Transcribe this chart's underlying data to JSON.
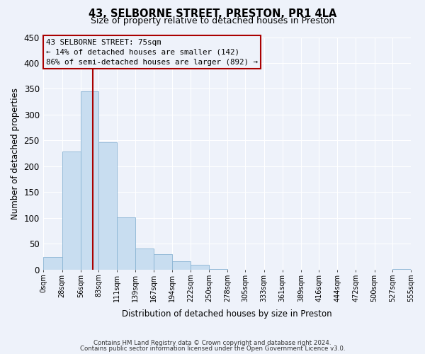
{
  "title_line1": "43, SELBORNE STREET, PRESTON, PR1 4LA",
  "title_line2": "Size of property relative to detached houses in Preston",
  "xlabel": "Distribution of detached houses by size in Preston",
  "ylabel": "Number of detached properties",
  "bar_color": "#c8ddf0",
  "bar_edge_color": "#8ab4d4",
  "bg_color": "#eef2fa",
  "grid_color": "#ffffff",
  "vline_color": "#aa0000",
  "vline_x": 75,
  "annotation_title": "43 SELBORNE STREET: 75sqm",
  "annotation_line1": "← 14% of detached houses are smaller (142)",
  "annotation_line2": "86% of semi-detached houses are larger (892) →",
  "bin_edges": [
    0,
    28,
    56,
    83,
    111,
    139,
    167,
    194,
    222,
    250,
    278,
    305,
    333,
    361,
    389,
    416,
    444,
    472,
    500,
    527,
    555
  ],
  "bin_labels": [
    "0sqm",
    "28sqm",
    "56sqm",
    "83sqm",
    "111sqm",
    "139sqm",
    "167sqm",
    "194sqm",
    "222sqm",
    "250sqm",
    "278sqm",
    "305sqm",
    "333sqm",
    "361sqm",
    "389sqm",
    "416sqm",
    "444sqm",
    "472sqm",
    "500sqm",
    "527sqm",
    "555sqm"
  ],
  "bar_heights": [
    25,
    228,
    345,
    246,
    101,
    41,
    30,
    16,
    10,
    1,
    0,
    0,
    0,
    0,
    0,
    0,
    0,
    0,
    0,
    1
  ],
  "ylim": [
    0,
    450
  ],
  "yticks": [
    0,
    50,
    100,
    150,
    200,
    250,
    300,
    350,
    400,
    450
  ],
  "footer_line1": "Contains HM Land Registry data © Crown copyright and database right 2024.",
  "footer_line2": "Contains public sector information licensed under the Open Government Licence v3.0."
}
